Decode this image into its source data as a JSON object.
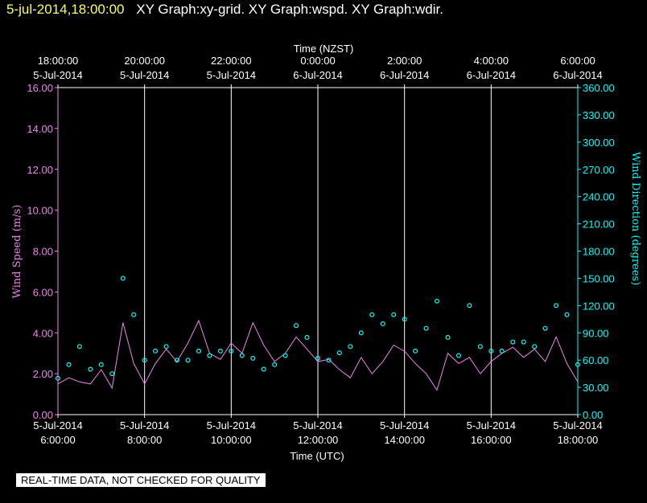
{
  "header": {
    "timestamp": "5-jul-2014,18:00:00",
    "title": "XY Graph:xy-grid.  XY Graph:wspd.  XY Graph:wdir."
  },
  "footer": {
    "note": "REAL-TIME DATA, NOT CHECKED FOR QUALITY"
  },
  "colors": {
    "wind_speed": "#ee82ee",
    "wind_direction": "#00ffff",
    "axes": "#ffffff",
    "grid": "#ffffff"
  },
  "chart_data": {
    "type": "line",
    "xlabel": "Time (UTC)",
    "x2label": "Time (NZST)",
    "ylabel": "Wind Speed (m/s)",
    "y2label": "Wind Direction (degrees)",
    "xlim": [
      "5-Jul-2014 06:00:00",
      "5-Jul-2014 18:00:00"
    ],
    "ylim": [
      0,
      16
    ],
    "y2lim": [
      0,
      360
    ],
    "y_ticks": [
      "0.00",
      "2.00",
      "4.00",
      "6.00",
      "8.00",
      "10.00",
      "12.00",
      "14.00",
      "16.00"
    ],
    "y2_ticks": [
      "0.00",
      "30.00",
      "60.00",
      "90.00",
      "120.00",
      "150.00",
      "180.00",
      "210.00",
      "240.00",
      "270.00",
      "300.00",
      "330.00",
      "360.00"
    ],
    "x_ticks_bottom": [
      {
        "date": "5-Jul-2014",
        "time": "6:00:00"
      },
      {
        "date": "5-Jul-2014",
        "time": "8:00:00"
      },
      {
        "date": "5-Jul-2014",
        "time": "10:00:00"
      },
      {
        "date": "5-Jul-2014",
        "time": "12:00:00"
      },
      {
        "date": "5-Jul-2014",
        "time": "14:00:00"
      },
      {
        "date": "5-Jul-2014",
        "time": "16:00:00"
      },
      {
        "date": "5-Jul-2014",
        "time": "18:00:00"
      }
    ],
    "x_ticks_top": [
      {
        "date": "5-Jul-2014",
        "time": "18:00:00"
      },
      {
        "date": "5-Jul-2014",
        "time": "20:00:00"
      },
      {
        "date": "5-Jul-2014",
        "time": "22:00:00"
      },
      {
        "date": "6-Jul-2014",
        "time": "0:00:00"
      },
      {
        "date": "6-Jul-2014",
        "time": "2:00:00"
      },
      {
        "date": "6-Jul-2014",
        "time": "4:00:00"
      },
      {
        "date": "6-Jul-2014",
        "time": "6:00:00"
      }
    ],
    "grid": true,
    "series": [
      {
        "name": "Wind Speed (m/s)",
        "axis": "left",
        "style": "line",
        "x_hours_utc": [
          6.0,
          6.25,
          6.5,
          6.75,
          7.0,
          7.25,
          7.5,
          7.75,
          8.0,
          8.25,
          8.5,
          8.75,
          9.0,
          9.25,
          9.5,
          9.75,
          10.0,
          10.25,
          10.5,
          10.75,
          11.0,
          11.25,
          11.5,
          11.75,
          12.0,
          12.25,
          12.5,
          12.75,
          13.0,
          13.25,
          13.5,
          13.75,
          14.0,
          14.25,
          14.5,
          14.75,
          15.0,
          15.25,
          15.5,
          15.75,
          16.0,
          16.25,
          16.5,
          16.75,
          17.0,
          17.25,
          17.5,
          17.75,
          18.0
        ],
        "values": [
          1.5,
          1.8,
          1.6,
          1.5,
          2.2,
          1.3,
          4.5,
          2.5,
          1.5,
          2.5,
          3.2,
          2.6,
          3.5,
          4.6,
          3.0,
          2.7,
          3.5,
          3.0,
          4.5,
          3.4,
          2.6,
          3.0,
          3.8,
          3.2,
          2.6,
          2.7,
          2.2,
          1.8,
          2.8,
          2.0,
          2.6,
          3.4,
          3.1,
          2.5,
          2.0,
          1.2,
          3.0,
          2.5,
          2.8,
          2.0,
          2.6,
          3.0,
          3.3,
          2.8,
          3.2,
          2.6,
          3.8,
          2.5,
          1.6
        ]
      },
      {
        "name": "Wind Direction (degrees)",
        "axis": "right",
        "style": "markers",
        "x_hours_utc": [
          6.0,
          6.25,
          6.5,
          6.75,
          7.0,
          7.25,
          7.5,
          7.75,
          8.0,
          8.25,
          8.5,
          8.75,
          9.0,
          9.25,
          9.5,
          9.75,
          10.0,
          10.25,
          10.5,
          10.75,
          11.0,
          11.25,
          11.5,
          11.75,
          12.0,
          12.25,
          12.5,
          12.75,
          13.0,
          13.25,
          13.5,
          13.75,
          14.0,
          14.25,
          14.5,
          14.75,
          15.0,
          15.25,
          15.5,
          15.75,
          16.0,
          16.25,
          16.5,
          16.75,
          17.0,
          17.25,
          17.5,
          17.75,
          18.0
        ],
        "values": [
          40,
          55,
          75,
          50,
          55,
          45,
          150,
          110,
          60,
          70,
          75,
          60,
          60,
          70,
          65,
          70,
          70,
          65,
          62,
          50,
          55,
          65,
          98,
          85,
          62,
          60,
          68,
          75,
          90,
          110,
          100,
          110,
          105,
          70,
          95,
          125,
          85,
          65,
          120,
          75,
          70,
          70,
          80,
          80,
          75,
          95,
          120,
          110,
          55
        ]
      }
    ]
  }
}
